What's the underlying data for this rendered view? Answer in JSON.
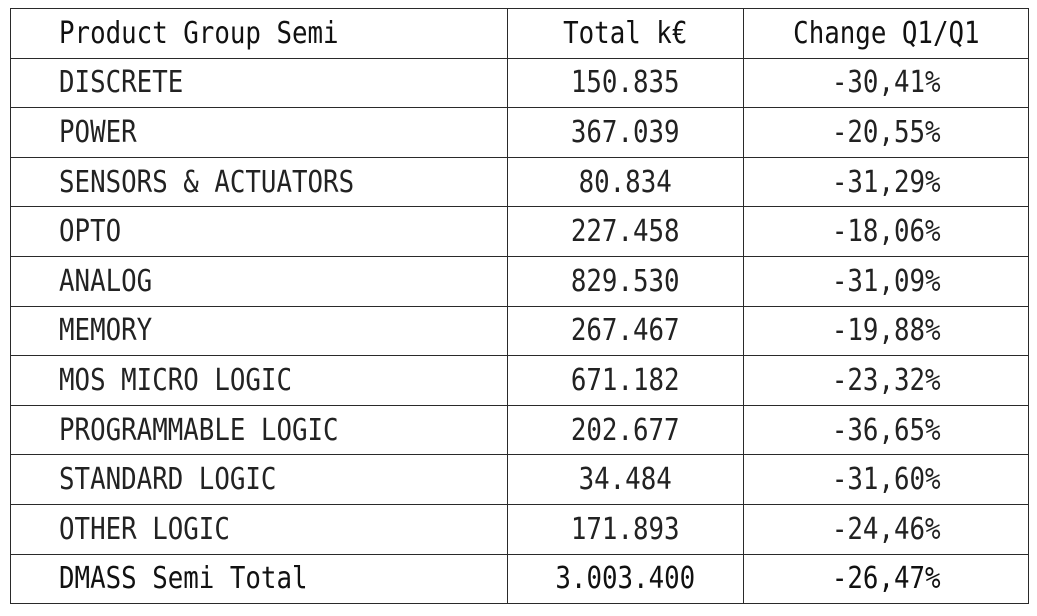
{
  "chart_data": {
    "type": "table",
    "columns": [
      "Product Group Semi",
      "Total k€",
      "Change Q1/Q1"
    ],
    "rows": [
      {
        "group": "DISCRETE",
        "total": "150.835",
        "change": "-30,41%"
      },
      {
        "group": "POWER",
        "total": "367.039",
        "change": "-20,55%"
      },
      {
        "group": "SENSORS & ACTUATORS",
        "total": "80.834",
        "change": "-31,29%"
      },
      {
        "group": "OPTO",
        "total": "227.458",
        "change": "-18,06%"
      },
      {
        "group": "ANALOG",
        "total": "829.530",
        "change": "-31,09%"
      },
      {
        "group": "MEMORY",
        "total": "267.467",
        "change": "-19,88%"
      },
      {
        "group": "MOS MICRO LOGIC",
        "total": "671.182",
        "change": "-23,32%"
      },
      {
        "group": "PROGRAMMABLE LOGIC",
        "total": "202.677",
        "change": "-36,65%"
      },
      {
        "group": "STANDARD LOGIC",
        "total": "34.484",
        "change": "-31,60%"
      },
      {
        "group": "OTHER LOGIC",
        "total": "171.893",
        "change": "-24,46%"
      }
    ],
    "total_row": {
      "group": "DMASS Semi Total",
      "total": "3.003.400",
      "change": "-26,47%"
    }
  }
}
